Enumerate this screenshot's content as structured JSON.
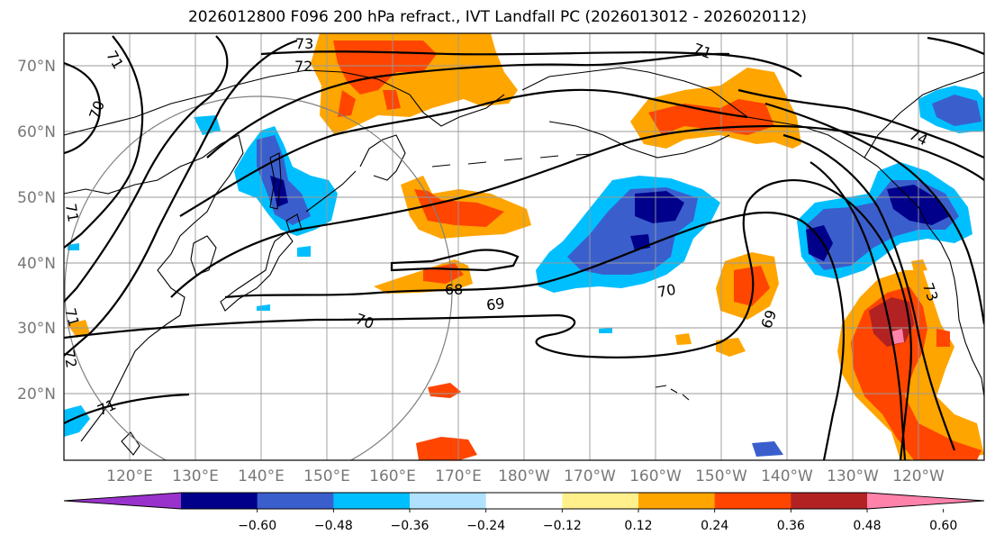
{
  "title": "2026012800 F096 200 hPa refract., IVT Landfall PC (2026013012 - 2026020112)",
  "lat_labels": [
    "70°N",
    "60°N",
    "50°N",
    "40°N",
    "30°N",
    "20°N"
  ],
  "lon_labels": [
    "120°E",
    "130°E",
    "140°E",
    "150°E",
    "160°E",
    "170°E",
    "180°W",
    "170°W",
    "160°W",
    "150°W",
    "140°W",
    "130°W",
    "120°W"
  ],
  "colorbar": {
    "colors": [
      "#9932cc",
      "#00008b",
      "#3a5fcd",
      "#00bfff",
      "#b0e2ff",
      "#ffffff",
      "#fff08c",
      "#ffa500",
      "#ff4500",
      "#b22222",
      "#ff82ab"
    ],
    "ticks": [
      "−0.60",
      "−0.48",
      "−0.36",
      "−0.24",
      "−0.12",
      "0.12",
      "0.24",
      "0.36",
      "0.48",
      "0.60"
    ]
  },
  "contour_labels": [
    "73",
    "72",
    "71",
    "70",
    "71",
    "71",
    "74",
    "68",
    "69",
    "70",
    "69",
    "70",
    "73",
    "71",
    "71",
    "72"
  ]
}
